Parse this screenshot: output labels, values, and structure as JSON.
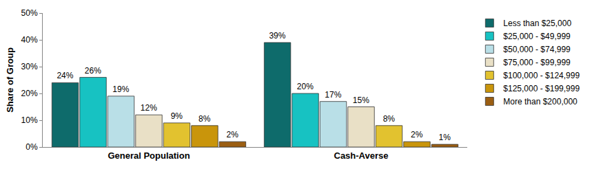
{
  "chart_data": {
    "type": "bar",
    "categories": [
      "General Population",
      "Cash-Averse"
    ],
    "y_label": "Share of Group",
    "series": [
      {
        "name": "Less than $25,000",
        "color": "#0e6b6b",
        "values": [
          24,
          39
        ],
        "value_labels": [
          "24%",
          "39%"
        ]
      },
      {
        "name": "$25,000 - $49,999",
        "color": "#17c2c2",
        "values": [
          26,
          20
        ],
        "value_labels": [
          "26%",
          "20%"
        ]
      },
      {
        "name": "$50,000 - $74,999",
        "color": "#b9dfe7",
        "values": [
          19,
          17
        ],
        "value_labels": [
          "19%",
          "17%"
        ]
      },
      {
        "name": "$75,000 - $99,999",
        "color": "#e9e0c6",
        "values": [
          12,
          15
        ],
        "value_labels": [
          "12%",
          "15%"
        ]
      },
      {
        "name": "$100,000 - $124,999",
        "color": "#e2c22f",
        "values": [
          9,
          8
        ],
        "value_labels": [
          "9%",
          "8%"
        ]
      },
      {
        "name": "$125,000 - $199,999",
        "color": "#c9950b",
        "values": [
          8,
          2
        ],
        "value_labels": [
          "8%",
          "2%"
        ]
      },
      {
        "name": "More than $200,000",
        "color": "#9b5e12",
        "values": [
          2,
          1
        ],
        "value_labels": [
          "2%",
          "1%"
        ]
      }
    ],
    "ylim": [
      0,
      50
    ],
    "yticks": [
      {
        "value": 0,
        "label": "0%"
      },
      {
        "value": 10,
        "label": "10%"
      },
      {
        "value": 20,
        "label": "20%"
      },
      {
        "value": 30,
        "label": "30%"
      },
      {
        "value": 40,
        "label": "40%"
      },
      {
        "value": 50,
        "label": "50%"
      }
    ],
    "grid": false,
    "legend": "right",
    "data_labels": true
  }
}
